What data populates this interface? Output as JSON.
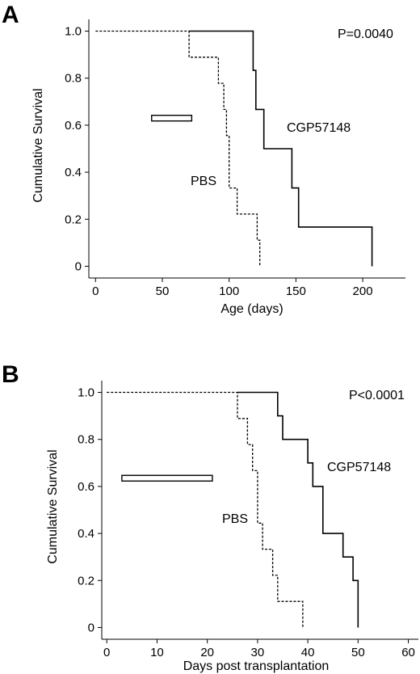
{
  "chart_data": [
    {
      "type": "line",
      "panel_label": "A",
      "xlabel": "Age (days)",
      "ylabel": "Cumulative Survival",
      "xlim": [
        -5,
        232
      ],
      "ylim": [
        -0.05,
        1.05
      ],
      "xticks": [
        0,
        50,
        100,
        150,
        200
      ],
      "yticks": [
        0,
        0.2,
        0.4,
        0.6,
        0.8,
        1.0
      ],
      "ytick_labels": [
        "0",
        "0.2",
        "0.4",
        "0.6",
        "0.8",
        "1.0"
      ],
      "annotation": "P=0.0040",
      "treatment_bar": [
        42,
        72
      ],
      "treatment_bar_y": 0.63,
      "series": [
        {
          "name": "PBS",
          "style": "dashed",
          "x": [
            0,
            70,
            70,
            92,
            92,
            96,
            96,
            98,
            98,
            100,
            100,
            106,
            106,
            121,
            121,
            123,
            123
          ],
          "y": [
            1.0,
            1.0,
            0.889,
            0.889,
            0.778,
            0.778,
            0.667,
            0.667,
            0.556,
            0.556,
            0.333,
            0.333,
            0.222,
            0.222,
            0.111,
            0.111,
            0.0
          ]
        },
        {
          "name": "CGP57148",
          "style": "solid",
          "x": [
            70,
            118,
            118,
            120,
            120,
            126,
            126,
            147,
            147,
            152,
            152,
            207,
            207
          ],
          "y": [
            1.0,
            1.0,
            0.833,
            0.833,
            0.667,
            0.667,
            0.5,
            0.5,
            0.333,
            0.333,
            0.167,
            0.167,
            0.0
          ]
        }
      ]
    },
    {
      "type": "line",
      "panel_label": "B",
      "xlabel": "Days post transplantation",
      "ylabel": "Cumulative Survival",
      "xlim": [
        -1,
        62
      ],
      "ylim": [
        -0.05,
        1.05
      ],
      "xticks": [
        0,
        10,
        20,
        30,
        40,
        50,
        60
      ],
      "yticks": [
        0,
        0.2,
        0.4,
        0.6,
        0.8,
        1.0
      ],
      "ytick_labels": [
        "0",
        "0.2",
        "0.4",
        "0.6",
        "0.8",
        "1.0"
      ],
      "annotation": "P<0.0001",
      "treatment_bar": [
        3,
        21
      ],
      "treatment_bar_y": 0.635,
      "series": [
        {
          "name": "PBS",
          "style": "dashed",
          "x": [
            0,
            26,
            26,
            28,
            28,
            29,
            29,
            30,
            30,
            31,
            31,
            33,
            33,
            34,
            34,
            35,
            35,
            39,
            39
          ],
          "y": [
            1.0,
            1.0,
            0.889,
            0.889,
            0.778,
            0.778,
            0.667,
            0.667,
            0.444,
            0.444,
            0.333,
            0.333,
            0.222,
            0.222,
            0.111,
            0.111,
            0.111,
            0.111,
            0.0
          ]
        },
        {
          "name": "CGP57148",
          "style": "solid",
          "x": [
            26,
            34,
            34,
            35,
            35,
            40,
            40,
            41,
            41,
            43,
            43,
            47,
            47,
            49,
            49,
            50,
            50
          ],
          "y": [
            1.0,
            1.0,
            0.9,
            0.9,
            0.8,
            0.8,
            0.7,
            0.7,
            0.6,
            0.6,
            0.4,
            0.4,
            0.3,
            0.3,
            0.2,
            0.2,
            0.0
          ]
        }
      ]
    }
  ]
}
